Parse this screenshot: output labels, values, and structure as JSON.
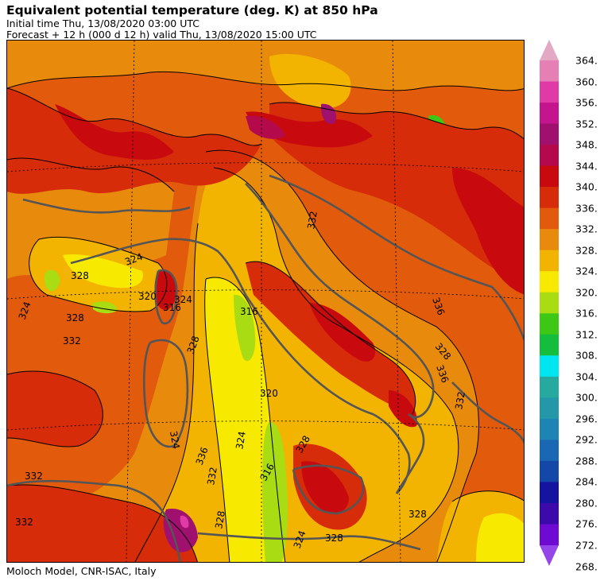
{
  "header": {
    "title": "Equivalent potential temperature (deg. K) at 850 hPa",
    "initial_time": "Initial time  Thu, 13/08/2020  03:00 UTC",
    "forecast": "Forecast  +  12 h  (000 d 12 h)  valid Thu, 13/08/2020 15:00 UTC"
  },
  "footer": {
    "credit": "Moloch Model, CNR-ISAC, Italy"
  },
  "colorbar": {
    "labels": [
      "364.",
      "360.",
      "356.",
      "352.",
      "348.",
      "344.",
      "340.",
      "336.",
      "332.",
      "328.",
      "324.",
      "320.",
      "316.",
      "312.",
      "308.",
      "304.",
      "300.",
      "296.",
      "292.",
      "288.",
      "284.",
      "280.",
      "276.",
      "272.",
      "268."
    ],
    "colors": [
      "#e3a8c4",
      "#e680b4",
      "#e03aa6",
      "#c4148e",
      "#a0106e",
      "#b40a4c",
      "#c80a0e",
      "#d72c0a",
      "#e25a0c",
      "#e88a0c",
      "#f2b400",
      "#f7ea00",
      "#aadc14",
      "#3cc814",
      "#14be3c",
      "#00e6f0",
      "#26aaa0",
      "#2498a8",
      "#1e84b4",
      "#1a68b4",
      "#1448a8",
      "#1414a0",
      "#3c0aaa",
      "#6e0ad2",
      "#9446e8"
    ]
  },
  "map": {
    "contour_labels": [
      "332",
      "324",
      "328",
      "320",
      "324",
      "316",
      "324",
      "316",
      "328",
      "332",
      "328",
      "324",
      "320",
      "324",
      "316",
      "332",
      "336",
      "328",
      "336",
      "332",
      "336",
      "328",
      "328",
      "332",
      "332",
      "324",
      "328",
      "328"
    ]
  }
}
